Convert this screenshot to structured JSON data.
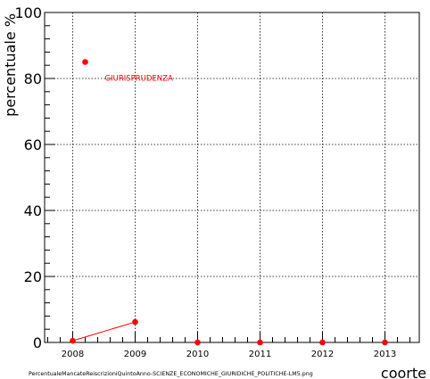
{
  "chart_data": {
    "type": "line",
    "title": "",
    "xlabel": "coorte",
    "ylabel": "percentuale %",
    "xlim": [
      2007.55,
      2013.55
    ],
    "ylim": [
      0,
      100
    ],
    "x_ticks": [
      2008,
      2009,
      2010,
      2011,
      2012,
      2013
    ],
    "y_ticks": [
      0,
      20,
      40,
      60,
      80,
      100
    ],
    "grid": true,
    "series": [
      {
        "name": "GIURISPRUDENZA",
        "color": "#ff0000",
        "x": [
          2008,
          2009,
          2010,
          2011,
          2012,
          2013
        ],
        "y": [
          0.5,
          6.2,
          0,
          0,
          0,
          0
        ],
        "connected_through": 2009
      }
    ],
    "legend": {
      "entries": [
        {
          "label": "GIURISPRUDENZA",
          "color": "#ff0000",
          "marker_y": 85
        }
      ]
    },
    "footer": "PercentualeMancateReiscrizioniQuintoAnno-SCIENZE_ECONOMICHE_GIURIDICHE_POLITICHE-LM5.png"
  }
}
